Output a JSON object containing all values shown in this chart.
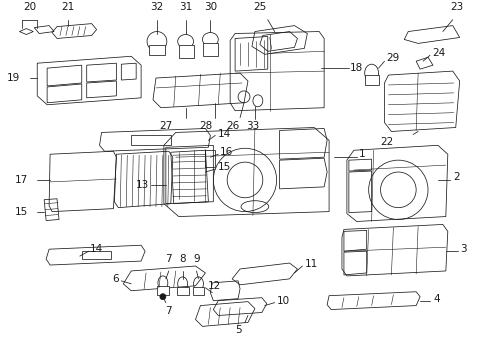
{
  "bg_color": "#ffffff",
  "line_color": "#1a1a1a",
  "fig_width": 4.89,
  "fig_height": 3.6,
  "dpi": 100,
  "lw": 0.55,
  "font_size": 7.5
}
